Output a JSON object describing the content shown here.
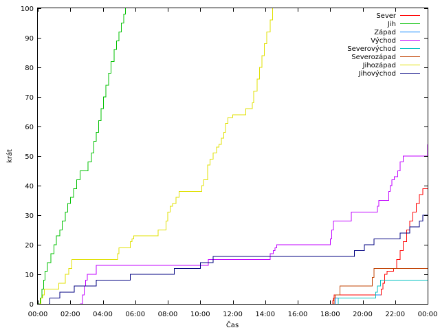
{
  "chart_data": {
    "type": "line",
    "xlabel": "Čas",
    "ylabel": "krát",
    "xlim": [
      0,
      24
    ],
    "ylim": [
      0,
      100
    ],
    "x_tick_values": [
      0,
      2,
      4,
      6,
      8,
      10,
      12,
      14,
      16,
      18,
      20,
      22,
      24
    ],
    "x_tick_labels": [
      "00:00",
      "02:00",
      "04:00",
      "06:00",
      "08:00",
      "10:00",
      "12:00",
      "14:00",
      "16:00",
      "18:00",
      "20:00",
      "22:00",
      "00:00"
    ],
    "y_ticks": [
      0,
      10,
      20,
      30,
      40,
      50,
      60,
      70,
      80,
      90,
      100
    ],
    "grid": false,
    "legend_position": "top-right",
    "series": [
      {
        "name": "Sever",
        "color": "#ff0000",
        "points": [
          [
            18.15,
            0
          ],
          [
            18.15,
            1
          ],
          [
            18.2,
            2
          ],
          [
            18.25,
            3
          ],
          [
            21.1,
            3
          ],
          [
            21.15,
            5
          ],
          [
            21.25,
            7
          ],
          [
            21.35,
            10
          ],
          [
            21.5,
            11
          ],
          [
            21.9,
            12
          ],
          [
            22.1,
            15
          ],
          [
            22.3,
            18
          ],
          [
            22.5,
            21
          ],
          [
            22.7,
            25
          ],
          [
            22.9,
            28
          ],
          [
            23.1,
            31
          ],
          [
            23.3,
            34
          ],
          [
            23.5,
            37
          ],
          [
            23.7,
            39
          ],
          [
            24,
            39
          ]
        ]
      },
      {
        "name": "Jih",
        "color": "#00c000",
        "points": [
          [
            0.05,
            0
          ],
          [
            0.15,
            2
          ],
          [
            0.25,
            5
          ],
          [
            0.35,
            8
          ],
          [
            0.45,
            11
          ],
          [
            0.6,
            14
          ],
          [
            0.8,
            17
          ],
          [
            1.0,
            20
          ],
          [
            1.15,
            23
          ],
          [
            1.35,
            25
          ],
          [
            1.5,
            28
          ],
          [
            1.7,
            31
          ],
          [
            1.85,
            34
          ],
          [
            2.0,
            36
          ],
          [
            2.2,
            39
          ],
          [
            2.4,
            42
          ],
          [
            2.6,
            45
          ],
          [
            2.95,
            45
          ],
          [
            3.1,
            48
          ],
          [
            3.3,
            51
          ],
          [
            3.45,
            55
          ],
          [
            3.6,
            58
          ],
          [
            3.75,
            62
          ],
          [
            3.9,
            66
          ],
          [
            4.05,
            70
          ],
          [
            4.2,
            74
          ],
          [
            4.35,
            78
          ],
          [
            4.5,
            82
          ],
          [
            4.7,
            86
          ],
          [
            4.85,
            89
          ],
          [
            5.0,
            92
          ],
          [
            5.15,
            95
          ],
          [
            5.3,
            98
          ],
          [
            5.4,
            100
          ]
        ]
      },
      {
        "name": "Západ",
        "color": "#0080ff",
        "points": [
          [
            18.3,
            0
          ],
          [
            18.3,
            2
          ],
          [
            20.8,
            2
          ],
          [
            20.8,
            3
          ],
          [
            21.1,
            3
          ]
        ]
      },
      {
        "name": "Východ",
        "color": "#c000ff",
        "points": [
          [
            2.6,
            0
          ],
          [
            2.75,
            3
          ],
          [
            2.85,
            6
          ],
          [
            2.95,
            8
          ],
          [
            3.05,
            10
          ],
          [
            3.5,
            10
          ],
          [
            3.6,
            13
          ],
          [
            10.4,
            13
          ],
          [
            10.5,
            15
          ],
          [
            14.2,
            15
          ],
          [
            14.3,
            17
          ],
          [
            14.5,
            18
          ],
          [
            14.6,
            19
          ],
          [
            14.7,
            20
          ],
          [
            17.9,
            20
          ],
          [
            18.0,
            22
          ],
          [
            18.1,
            25
          ],
          [
            18.2,
            28
          ],
          [
            19.2,
            28
          ],
          [
            19.3,
            31
          ],
          [
            20.8,
            31
          ],
          [
            20.9,
            33
          ],
          [
            21.0,
            35
          ],
          [
            21.5,
            35
          ],
          [
            21.6,
            38
          ],
          [
            21.7,
            40
          ],
          [
            21.8,
            42
          ],
          [
            21.95,
            43
          ],
          [
            22.15,
            45
          ],
          [
            22.3,
            48
          ],
          [
            22.5,
            50
          ],
          [
            23.9,
            50
          ],
          [
            24,
            54
          ]
        ]
      },
      {
        "name": "Severovýchod",
        "color": "#00c0c0",
        "points": [
          [
            18.5,
            0
          ],
          [
            18.5,
            2
          ],
          [
            20.7,
            2
          ],
          [
            20.8,
            4
          ],
          [
            20.9,
            6
          ],
          [
            21.1,
            8
          ],
          [
            24,
            8
          ]
        ]
      },
      {
        "name": "Severozápad",
        "color": "#c04000",
        "points": [
          [
            18.2,
            0
          ],
          [
            18.25,
            2
          ],
          [
            18.3,
            3
          ],
          [
            18.5,
            3
          ],
          [
            18.6,
            6
          ],
          [
            20.5,
            6
          ],
          [
            20.6,
            9
          ],
          [
            20.7,
            12
          ],
          [
            24,
            12
          ]
        ]
      },
      {
        "name": "Jihozápad",
        "color": "#e0e000",
        "points": [
          [
            0.1,
            0
          ],
          [
            0.2,
            2
          ],
          [
            0.3,
            3
          ],
          [
            0.4,
            5
          ],
          [
            1.2,
            5
          ],
          [
            1.3,
            7
          ],
          [
            1.6,
            7
          ],
          [
            1.7,
            10
          ],
          [
            1.9,
            12
          ],
          [
            2.1,
            15
          ],
          [
            4.8,
            15
          ],
          [
            4.9,
            17
          ],
          [
            5.0,
            19
          ],
          [
            5.6,
            19
          ],
          [
            5.7,
            21
          ],
          [
            5.8,
            22
          ],
          [
            5.9,
            23
          ],
          [
            7.3,
            23
          ],
          [
            7.4,
            25
          ],
          [
            7.8,
            25
          ],
          [
            7.9,
            28
          ],
          [
            8.0,
            31
          ],
          [
            8.15,
            33
          ],
          [
            8.3,
            34
          ],
          [
            8.5,
            36
          ],
          [
            8.7,
            38
          ],
          [
            10.0,
            38
          ],
          [
            10.1,
            40
          ],
          [
            10.2,
            42
          ],
          [
            10.35,
            42
          ],
          [
            10.45,
            47
          ],
          [
            10.6,
            49
          ],
          [
            10.8,
            51
          ],
          [
            11.0,
            53
          ],
          [
            11.15,
            54
          ],
          [
            11.3,
            56
          ],
          [
            11.45,
            58
          ],
          [
            11.55,
            61
          ],
          [
            11.7,
            63
          ],
          [
            12.0,
            64
          ],
          [
            12.7,
            64
          ],
          [
            12.8,
            66
          ],
          [
            13.1,
            66
          ],
          [
            13.2,
            68
          ],
          [
            13.3,
            72
          ],
          [
            13.5,
            76
          ],
          [
            13.65,
            80
          ],
          [
            13.8,
            84
          ],
          [
            13.95,
            88
          ],
          [
            14.1,
            92
          ],
          [
            14.3,
            96
          ],
          [
            14.45,
            100
          ]
        ]
      },
      {
        "name": "Jihovýchod",
        "color": "#000080",
        "points": [
          [
            0.7,
            0
          ],
          [
            0.75,
            2
          ],
          [
            1.3,
            2
          ],
          [
            1.35,
            4
          ],
          [
            2.2,
            4
          ],
          [
            2.25,
            6
          ],
          [
            3.5,
            6
          ],
          [
            3.6,
            8
          ],
          [
            5.6,
            8
          ],
          [
            5.7,
            10
          ],
          [
            8.3,
            10
          ],
          [
            8.4,
            12
          ],
          [
            9.9,
            12
          ],
          [
            10.0,
            14
          ],
          [
            10.7,
            14
          ],
          [
            10.8,
            16
          ],
          [
            19.4,
            16
          ],
          [
            19.5,
            18
          ],
          [
            20.0,
            18
          ],
          [
            20.1,
            20
          ],
          [
            20.6,
            20
          ],
          [
            20.7,
            22
          ],
          [
            22.2,
            22
          ],
          [
            22.3,
            24
          ],
          [
            22.8,
            24
          ],
          [
            22.9,
            26
          ],
          [
            23.4,
            26
          ],
          [
            23.5,
            28
          ],
          [
            23.7,
            30
          ],
          [
            24,
            30
          ]
        ]
      }
    ]
  }
}
